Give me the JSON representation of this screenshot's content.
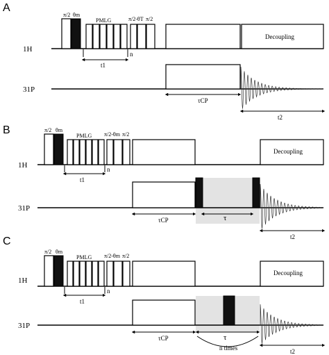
{
  "panels": [
    {
      "id": "A",
      "label": "A",
      "h_channel": "1H",
      "p_channel": "31P",
      "pulse_pi2": "π/2",
      "pulse_theta_m": "θm",
      "pmlg": "PMLG",
      "pulse_pi_over_2_minus_theta": "π/2-θT",
      "pulse_pi2_end": "π/2",
      "n_label": "n",
      "t1": "t1",
      "decoupling": "Decoupling",
      "tau_cp": "τCP",
      "t2": "t2"
    },
    {
      "id": "B",
      "label": "B",
      "h_channel": "1H",
      "p_channel": "31P",
      "pulse_pi2": "π/2",
      "pulse_theta_m": "θm",
      "pmlg": "PMLG",
      "pulse_pi_over_2_minus_theta": "π/2-θm",
      "pulse_pi2_end": "π/2",
      "n_label": "n",
      "t1": "t1",
      "decoupling": "Decoupling",
      "tau_cp": "τCP",
      "tau": "τ",
      "t2": "t2"
    },
    {
      "id": "C",
      "label": "C",
      "h_channel": "1H",
      "p_channel": "31P",
      "pulse_pi2": "π/2",
      "pulse_theta_m": "θm",
      "pmlg": "PMLG",
      "pulse_pi_over_2_minus_theta": "π/2-θm",
      "pulse_pi2_end": "π/2",
      "n_label": "n",
      "t1": "t1",
      "decoupling": "Decoupling",
      "tau_cp": "τCP",
      "tau": "τ",
      "n_times": "n times",
      "t2": "t2"
    }
  ]
}
